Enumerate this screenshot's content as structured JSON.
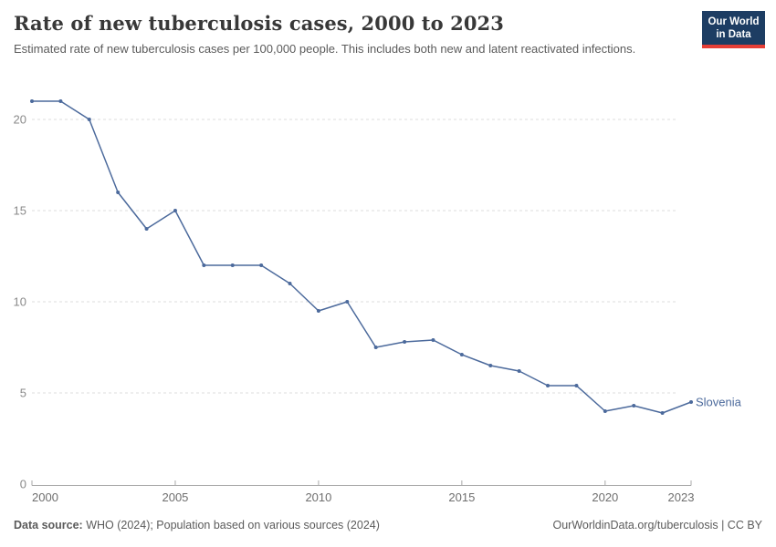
{
  "header": {
    "title": "Rate of new tuberculosis cases, 2000 to 2023",
    "subtitle": "Estimated rate of new tuberculosis cases per 100,000 people. This includes both new and latent reactivated infections."
  },
  "logo": {
    "line1": "Our World",
    "line2": "in Data",
    "bg_color": "#1d3d63",
    "accent_color": "#e63e36"
  },
  "chart_data": {
    "type": "line",
    "title": "Rate of new tuberculosis cases, 2000 to 2023",
    "xlabel": "",
    "ylabel": "",
    "x": [
      2000,
      2001,
      2002,
      2003,
      2004,
      2005,
      2006,
      2007,
      2008,
      2009,
      2010,
      2011,
      2012,
      2013,
      2014,
      2015,
      2016,
      2017,
      2018,
      2019,
      2020,
      2021,
      2022,
      2023
    ],
    "series": [
      {
        "name": "Slovenia",
        "color": "#4C6A9C",
        "values": [
          21,
          21,
          20,
          16,
          14,
          15,
          12,
          12,
          12,
          11,
          9.5,
          10,
          7.5,
          7.8,
          7.9,
          7.1,
          6.5,
          6.2,
          5.4,
          5.4,
          4,
          4.3,
          3.9,
          4.5
        ]
      }
    ],
    "x_ticks": [
      2000,
      2005,
      2010,
      2015,
      2020,
      2023
    ],
    "y_ticks": [
      0,
      5,
      10,
      15,
      20
    ],
    "xlim": [
      2000,
      2023
    ],
    "ylim": [
      0,
      21
    ],
    "grid": "horizontal-dashed",
    "legend_position": "end-of-line",
    "end_label": "Slovenia",
    "colors": {
      "gridline": "#dcdcdc",
      "axis": "#a8a8a8",
      "tick": "#a8a8a8"
    }
  },
  "footer": {
    "source_label": "Data source:",
    "source_text": " WHO (2024); Population based on various sources (2024)",
    "rights_text": "OurWorldinData.org/tuberculosis | CC BY"
  }
}
